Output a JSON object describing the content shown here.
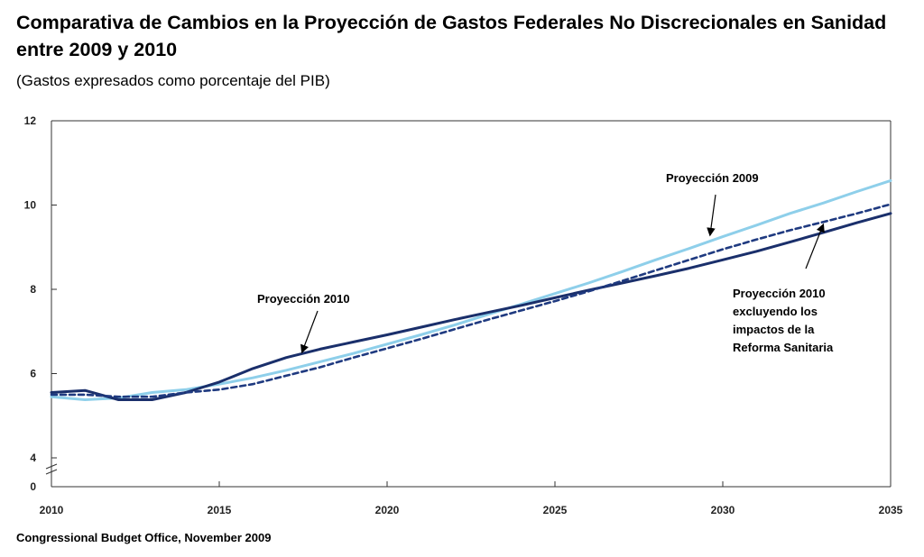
{
  "title": "Comparativa de Cambios en la Proyección de Gastos Federales No Discrecionales en Sanidad entre 2009 y 2010",
  "subtitle": "(Gastos expresados como porcentaje del PIB)",
  "source": "Congressional Budget Office, November 2009",
  "colors": {
    "proj2009": "#8ecfea",
    "proj2010": "#1a2f6b",
    "proj2010_excl": "#1f3a80",
    "axis": "#333333"
  },
  "chart_data": {
    "type": "line",
    "title": "Comparativa de Cambios en la Proyección de Gastos Federales No Discrecionales en Sanidad entre 2009 y 2010",
    "subtitle": "(Gastos expresados como porcentaje del PIB)",
    "xlabel": "",
    "ylabel": "",
    "xlim": [
      2010,
      2035
    ],
    "ylim": [
      4,
      12
    ],
    "y_axis_break": true,
    "y_ticks": [
      "12",
      "10",
      "8",
      "6",
      "4",
      "0"
    ],
    "x_ticks": [
      "2010",
      "2015",
      "2020",
      "2025",
      "2030",
      "2035"
    ],
    "grid": false,
    "series": [
      {
        "name": "Proyección 2009",
        "style": "solid",
        "x": [
          2010,
          2011,
          2012,
          2013,
          2014,
          2015,
          2016,
          2017,
          2018,
          2019,
          2020,
          2021,
          2022,
          2023,
          2024,
          2025,
          2026,
          2027,
          2028,
          2029,
          2030,
          2031,
          2032,
          2033,
          2034,
          2035
        ],
        "y": [
          5.45,
          5.38,
          5.42,
          5.55,
          5.62,
          5.75,
          5.9,
          6.08,
          6.28,
          6.48,
          6.7,
          6.92,
          7.15,
          7.4,
          7.65,
          7.9,
          8.15,
          8.42,
          8.7,
          8.97,
          9.25,
          9.52,
          9.8,
          10.05,
          10.32,
          10.58
        ]
      },
      {
        "name": "Proyección 2010",
        "style": "solid",
        "x": [
          2010,
          2011,
          2012,
          2013,
          2014,
          2015,
          2016,
          2017,
          2018,
          2019,
          2020,
          2021,
          2022,
          2023,
          2024,
          2025,
          2026,
          2027,
          2028,
          2029,
          2030,
          2031,
          2032,
          2033,
          2034,
          2035
        ],
        "y": [
          5.55,
          5.6,
          5.38,
          5.38,
          5.55,
          5.8,
          6.12,
          6.38,
          6.58,
          6.75,
          6.92,
          7.1,
          7.28,
          7.45,
          7.62,
          7.8,
          7.98,
          8.15,
          8.32,
          8.5,
          8.7,
          8.9,
          9.12,
          9.35,
          9.58,
          9.8
        ]
      },
      {
        "name": "Proyección 2010 excluyendo los impactos de la Reforma Sanitaria",
        "style": "dashed",
        "x": [
          2010,
          2011,
          2012,
          2013,
          2014,
          2015,
          2016,
          2017,
          2018,
          2019,
          2020,
          2021,
          2022,
          2023,
          2024,
          2025,
          2026,
          2027,
          2028,
          2029,
          2030,
          2031,
          2032,
          2033,
          2034,
          2035
        ],
        "y": [
          5.5,
          5.5,
          5.45,
          5.45,
          5.55,
          5.62,
          5.75,
          5.95,
          6.15,
          6.38,
          6.6,
          6.82,
          7.05,
          7.28,
          7.5,
          7.72,
          7.95,
          8.2,
          8.45,
          8.7,
          8.95,
          9.18,
          9.4,
          9.6,
          9.8,
          10.02
        ]
      }
    ],
    "annotations": [
      {
        "series": 0,
        "text": [
          "Proyección 2009"
        ]
      },
      {
        "series": 1,
        "text": [
          "Proyección 2010"
        ]
      },
      {
        "series": 2,
        "text": [
          "Proyección 2010",
          "excluyendo los",
          "impactos de la",
          "Reforma Sanitaria"
        ]
      }
    ]
  }
}
